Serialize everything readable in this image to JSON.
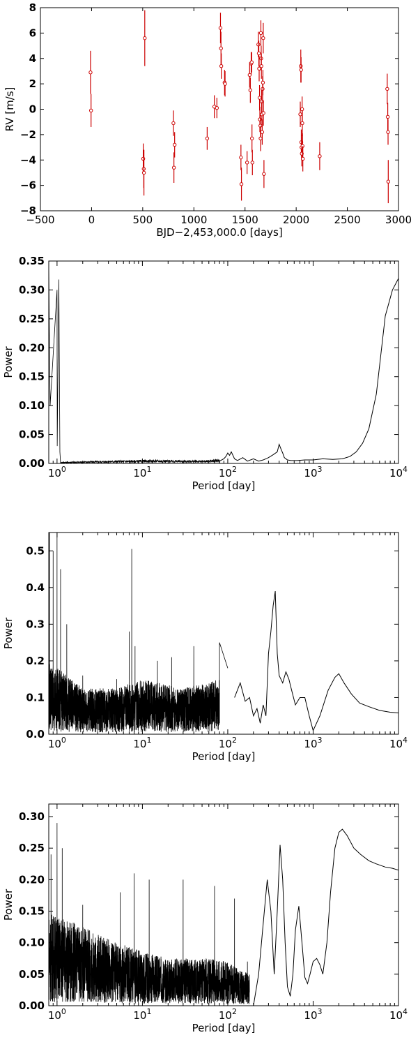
{
  "chart_data": [
    {
      "type": "scatter",
      "xlabel": "BJD−2,453,000.0 [days]",
      "ylabel": "RV [m/s]",
      "xlim": [
        -500,
        3000
      ],
      "ylim": [
        -8,
        8
      ],
      "x_ticks": [
        -500,
        0,
        500,
        1000,
        1500,
        2000,
        2500,
        3000
      ],
      "x_tick_labels": [
        "−500",
        "0",
        "500",
        "1000",
        "1500",
        "2000",
        "2500",
        "3000"
      ],
      "y_ticks": [
        -8,
        -6,
        -4,
        -2,
        0,
        2,
        4,
        6,
        8
      ],
      "y_tick_labels": [
        "−8",
        "−6",
        "−4",
        "−2",
        "0",
        "2",
        "4",
        "6",
        "8"
      ],
      "marker_color": "#cc0000",
      "points": [
        {
          "x": -10,
          "y": 2.9,
          "err": 1.7
        },
        {
          "x": -5,
          "y": -0.1,
          "err": 1.3
        },
        {
          "x": 505,
          "y": -3.9,
          "err": 1.2
        },
        {
          "x": 510,
          "y": -4.7,
          "err": 1.5
        },
        {
          "x": 512,
          "y": -5.0,
          "err": 1.8
        },
        {
          "x": 520,
          "y": 5.6,
          "err": 2.2
        },
        {
          "x": 800,
          "y": -1.1,
          "err": 1.0
        },
        {
          "x": 805,
          "y": -4.6,
          "err": 1.2
        },
        {
          "x": 812,
          "y": -2.8,
          "err": 1.0
        },
        {
          "x": 1130,
          "y": -2.3,
          "err": 0.9
        },
        {
          "x": 1200,
          "y": 0.2,
          "err": 0.9
        },
        {
          "x": 1225,
          "y": 0.1,
          "err": 0.8
        },
        {
          "x": 1260,
          "y": 6.4,
          "err": 1.2
        },
        {
          "x": 1265,
          "y": 4.8,
          "err": 1.3
        },
        {
          "x": 1268,
          "y": 3.4,
          "err": 1.0
        },
        {
          "x": 1300,
          "y": 2.1,
          "err": 1.0
        },
        {
          "x": 1305,
          "y": 2.0,
          "err": 1.0
        },
        {
          "x": 1460,
          "y": -3.8,
          "err": 1.0
        },
        {
          "x": 1465,
          "y": -5.9,
          "err": 1.3
        },
        {
          "x": 1520,
          "y": -4.2,
          "err": 0.9
        },
        {
          "x": 1545,
          "y": 2.7,
          "err": 1.0
        },
        {
          "x": 1552,
          "y": 1.5,
          "err": 1.0
        },
        {
          "x": 1560,
          "y": 3.6,
          "err": 0.9
        },
        {
          "x": 1565,
          "y": 3.7,
          "err": 0.8
        },
        {
          "x": 1568,
          "y": -2.3,
          "err": 1.1
        },
        {
          "x": 1572,
          "y": -4.2,
          "err": 1.0
        },
        {
          "x": 1630,
          "y": 5.1,
          "err": 1.0
        },
        {
          "x": 1635,
          "y": 4.4,
          "err": 1.0
        },
        {
          "x": 1638,
          "y": 3.2,
          "err": 1.0
        },
        {
          "x": 1642,
          "y": 0.9,
          "err": 1.0
        },
        {
          "x": 1645,
          "y": -0.8,
          "err": 1.0
        },
        {
          "x": 1650,
          "y": -1.3,
          "err": 1.0
        },
        {
          "x": 1652,
          "y": -2.3,
          "err": 1.0
        },
        {
          "x": 1655,
          "y": 6.0,
          "err": 1.0
        },
        {
          "x": 1658,
          "y": 4.0,
          "err": 1.0
        },
        {
          "x": 1660,
          "y": 3.4,
          "err": 1.0
        },
        {
          "x": 1662,
          "y": 0.6,
          "err": 1.0
        },
        {
          "x": 1665,
          "y": -0.4,
          "err": 1.0
        },
        {
          "x": 1668,
          "y": -1.8,
          "err": 1.0
        },
        {
          "x": 1672,
          "y": 1.6,
          "err": 1.0
        },
        {
          "x": 1675,
          "y": 2.1,
          "err": 1.0
        },
        {
          "x": 1678,
          "y": 5.6,
          "err": 1.2
        },
        {
          "x": 1680,
          "y": -0.3,
          "err": 1.0
        },
        {
          "x": 1685,
          "y": -5.1,
          "err": 1.1
        },
        {
          "x": 2040,
          "y": -0.4,
          "err": 1.0
        },
        {
          "x": 2045,
          "y": 3.4,
          "err": 1.3
        },
        {
          "x": 2048,
          "y": 3.1,
          "err": 1.0
        },
        {
          "x": 2050,
          "y": -2.6,
          "err": 1.0
        },
        {
          "x": 2052,
          "y": -3.0,
          "err": 1.0
        },
        {
          "x": 2055,
          "y": -3.5,
          "err": 1.0
        },
        {
          "x": 2058,
          "y": 0.0,
          "err": 1.0
        },
        {
          "x": 2060,
          "y": -1.1,
          "err": 1.0
        },
        {
          "x": 2062,
          "y": -2.9,
          "err": 1.0
        },
        {
          "x": 2065,
          "y": -3.9,
          "err": 1.0
        },
        {
          "x": 2230,
          "y": -3.7,
          "err": 1.1
        },
        {
          "x": 2890,
          "y": 1.6,
          "err": 1.2
        },
        {
          "x": 2895,
          "y": -0.6,
          "err": 1.1
        },
        {
          "x": 2898,
          "y": -1.8,
          "err": 1.0
        },
        {
          "x": 2900,
          "y": -5.7,
          "err": 1.7
        }
      ]
    },
    {
      "type": "line",
      "xlabel": "Period [day]",
      "ylabel": "Power",
      "xscale": "log",
      "xlim": [
        0.8,
        10000
      ],
      "ylim": [
        0,
        0.35
      ],
      "y_ticks": [
        0.0,
        0.05,
        0.1,
        0.15,
        0.2,
        0.25,
        0.3,
        0.35
      ],
      "y_tick_labels": [
        "0.00",
        "0.05",
        "0.10",
        "0.15",
        "0.20",
        "0.25",
        "0.30",
        "0.35"
      ],
      "x_tick_labels": [
        {
          "base": "10",
          "exp": "0"
        },
        {
          "base": "10",
          "exp": "1"
        },
        {
          "base": "10",
          "exp": "2"
        },
        {
          "base": "10",
          "exp": "3"
        },
        {
          "base": "10",
          "exp": "4"
        }
      ],
      "peaks": [
        {
          "period": 0.8,
          "power": 0.35
        },
        {
          "period": 0.81,
          "power": 0.25
        },
        {
          "period": 0.83,
          "power": 0.1
        },
        {
          "period": 1.0,
          "power": 0.3
        },
        {
          "period": 1.005,
          "power": 0.03
        },
        {
          "period": 1.05,
          "power": 0.318
        },
        {
          "period": 1.08,
          "power": 0.02
        }
      ],
      "baseline": [
        [
          1.1,
          0.002
        ],
        [
          5,
          0.004
        ],
        [
          15,
          0.005
        ],
        [
          50,
          0.004
        ],
        [
          80,
          0.006
        ]
      ],
      "series": [
        {
          "x": [
            80,
            90,
            95,
            100,
            105,
            110,
            120,
            130,
            150,
            170,
            200,
            230,
            260,
            300,
            340,
            380,
            400,
            420,
            440,
            460,
            500,
            550,
            650,
            800,
            1000,
            1300,
            1700,
            2200,
            2700,
            3200,
            3800,
            4500,
            5500,
            7000,
            8500,
            10000
          ],
          "y": [
            0.004,
            0.008,
            0.012,
            0.018,
            0.014,
            0.02,
            0.008,
            0.005,
            0.01,
            0.004,
            0.008,
            0.004,
            0.006,
            0.01,
            0.015,
            0.02,
            0.033,
            0.025,
            0.018,
            0.01,
            0.006,
            0.005,
            0.005,
            0.006,
            0.006,
            0.008,
            0.007,
            0.008,
            0.012,
            0.02,
            0.035,
            0.06,
            0.12,
            0.255,
            0.3,
            0.32
          ]
        }
      ]
    },
    {
      "type": "line",
      "xlabel": "Period [day]",
      "ylabel": "Power",
      "xscale": "log",
      "xlim": [
        0.8,
        10000
      ],
      "ylim": [
        0,
        0.55
      ],
      "y_ticks": [
        0.0,
        0.1,
        0.2,
        0.3,
        0.4,
        0.5
      ],
      "y_tick_labels": [
        "0.0",
        "0.1",
        "0.2",
        "0.3",
        "0.4",
        "0.5"
      ],
      "x_tick_labels": [
        {
          "base": "10",
          "exp": "0"
        },
        {
          "base": "10",
          "exp": "1"
        },
        {
          "base": "10",
          "exp": "2"
        },
        {
          "base": "10",
          "exp": "3"
        },
        {
          "base": "10",
          "exp": "4"
        }
      ],
      "peaks": [
        {
          "period": 0.82,
          "power": 0.55
        },
        {
          "period": 0.9,
          "power": 0.5
        },
        {
          "period": 1.0,
          "power": 0.55
        },
        {
          "period": 1.1,
          "power": 0.45
        },
        {
          "period": 1.3,
          "power": 0.3
        },
        {
          "period": 2.0,
          "power": 0.16
        },
        {
          "period": 5.0,
          "power": 0.15
        },
        {
          "period": 7.0,
          "power": 0.28
        },
        {
          "period": 7.5,
          "power": 0.505
        },
        {
          "period": 8.2,
          "power": 0.24
        },
        {
          "period": 15,
          "power": 0.2
        },
        {
          "period": 22,
          "power": 0.21
        },
        {
          "period": 40,
          "power": 0.24
        },
        {
          "period": 80,
          "power": 0.25
        },
        {
          "period": 100,
          "power": 0.18
        }
      ],
      "baseline": [
        [
          0.8,
          0.08
        ],
        [
          2,
          0.05
        ],
        [
          5,
          0.05
        ],
        [
          10,
          0.06
        ],
        [
          30,
          0.05
        ],
        [
          80,
          0.06
        ]
      ],
      "series": [
        {
          "x": [
            120,
            140,
            160,
            180,
            200,
            220,
            240,
            260,
            280,
            300,
            320,
            340,
            360,
            380,
            400,
            440,
            480,
            520,
            560,
            620,
            700,
            800,
            900,
            1000,
            1200,
            1500,
            1800,
            2000,
            2300,
            2800,
            3500,
            4500,
            6000,
            8000,
            10000
          ],
          "y": [
            0.1,
            0.14,
            0.09,
            0.1,
            0.05,
            0.07,
            0.03,
            0.08,
            0.05,
            0.22,
            0.28,
            0.35,
            0.39,
            0.22,
            0.16,
            0.14,
            0.17,
            0.15,
            0.12,
            0.08,
            0.1,
            0.1,
            0.05,
            0.01,
            0.05,
            0.12,
            0.155,
            0.165,
            0.14,
            0.11,
            0.085,
            0.075,
            0.065,
            0.06,
            0.058
          ]
        }
      ]
    },
    {
      "type": "line",
      "xlabel": "Period [day]",
      "ylabel": "Power",
      "xscale": "log",
      "xlim": [
        0.8,
        10000
      ],
      "ylim": [
        0,
        0.32
      ],
      "y_ticks": [
        0.0,
        0.05,
        0.1,
        0.15,
        0.2,
        0.25,
        0.3
      ],
      "y_tick_labels": [
        "0.00",
        "0.05",
        "0.10",
        "0.15",
        "0.20",
        "0.25",
        "0.30"
      ],
      "x_tick_labels": [
        {
          "base": "10",
          "exp": "0"
        },
        {
          "base": "10",
          "exp": "1"
        },
        {
          "base": "10",
          "exp": "2"
        },
        {
          "base": "10",
          "exp": "3"
        },
        {
          "base": "10",
          "exp": "4"
        }
      ],
      "peaks": [
        {
          "period": 0.85,
          "power": 0.24
        },
        {
          "period": 1.0,
          "power": 0.29
        },
        {
          "period": 1.15,
          "power": 0.25
        },
        {
          "period": 2.0,
          "power": 0.16
        },
        {
          "period": 5.5,
          "power": 0.18
        },
        {
          "period": 8.0,
          "power": 0.21
        },
        {
          "period": 12,
          "power": 0.2
        },
        {
          "period": 30,
          "power": 0.2
        },
        {
          "period": 70,
          "power": 0.19
        },
        {
          "period": 120,
          "power": 0.17
        },
        {
          "period": 170,
          "power": 0.07
        }
      ],
      "baseline": [
        [
          0.8,
          0.06
        ],
        [
          2,
          0.05
        ],
        [
          5,
          0.04
        ],
        [
          20,
          0.03
        ],
        [
          80,
          0.03
        ],
        [
          180,
          0.02
        ]
      ],
      "series": [
        {
          "x": [
            200,
            230,
            260,
            290,
            320,
            350,
            380,
            410,
            440,
            470,
            500,
            540,
            580,
            620,
            680,
            740,
            800,
            860,
            920,
            1000,
            1100,
            1200,
            1300,
            1450,
            1600,
            1800,
            2000,
            2200,
            2500,
            3000,
            3600,
            4500,
            5500,
            7000,
            8500,
            10000
          ],
          "y": [
            0.0,
            0.05,
            0.13,
            0.2,
            0.15,
            0.05,
            0.15,
            0.255,
            0.2,
            0.1,
            0.03,
            0.015,
            0.05,
            0.12,
            0.158,
            0.1,
            0.045,
            0.035,
            0.05,
            0.07,
            0.075,
            0.065,
            0.05,
            0.1,
            0.18,
            0.25,
            0.275,
            0.28,
            0.27,
            0.25,
            0.24,
            0.23,
            0.225,
            0.22,
            0.218,
            0.215
          ]
        }
      ]
    }
  ]
}
